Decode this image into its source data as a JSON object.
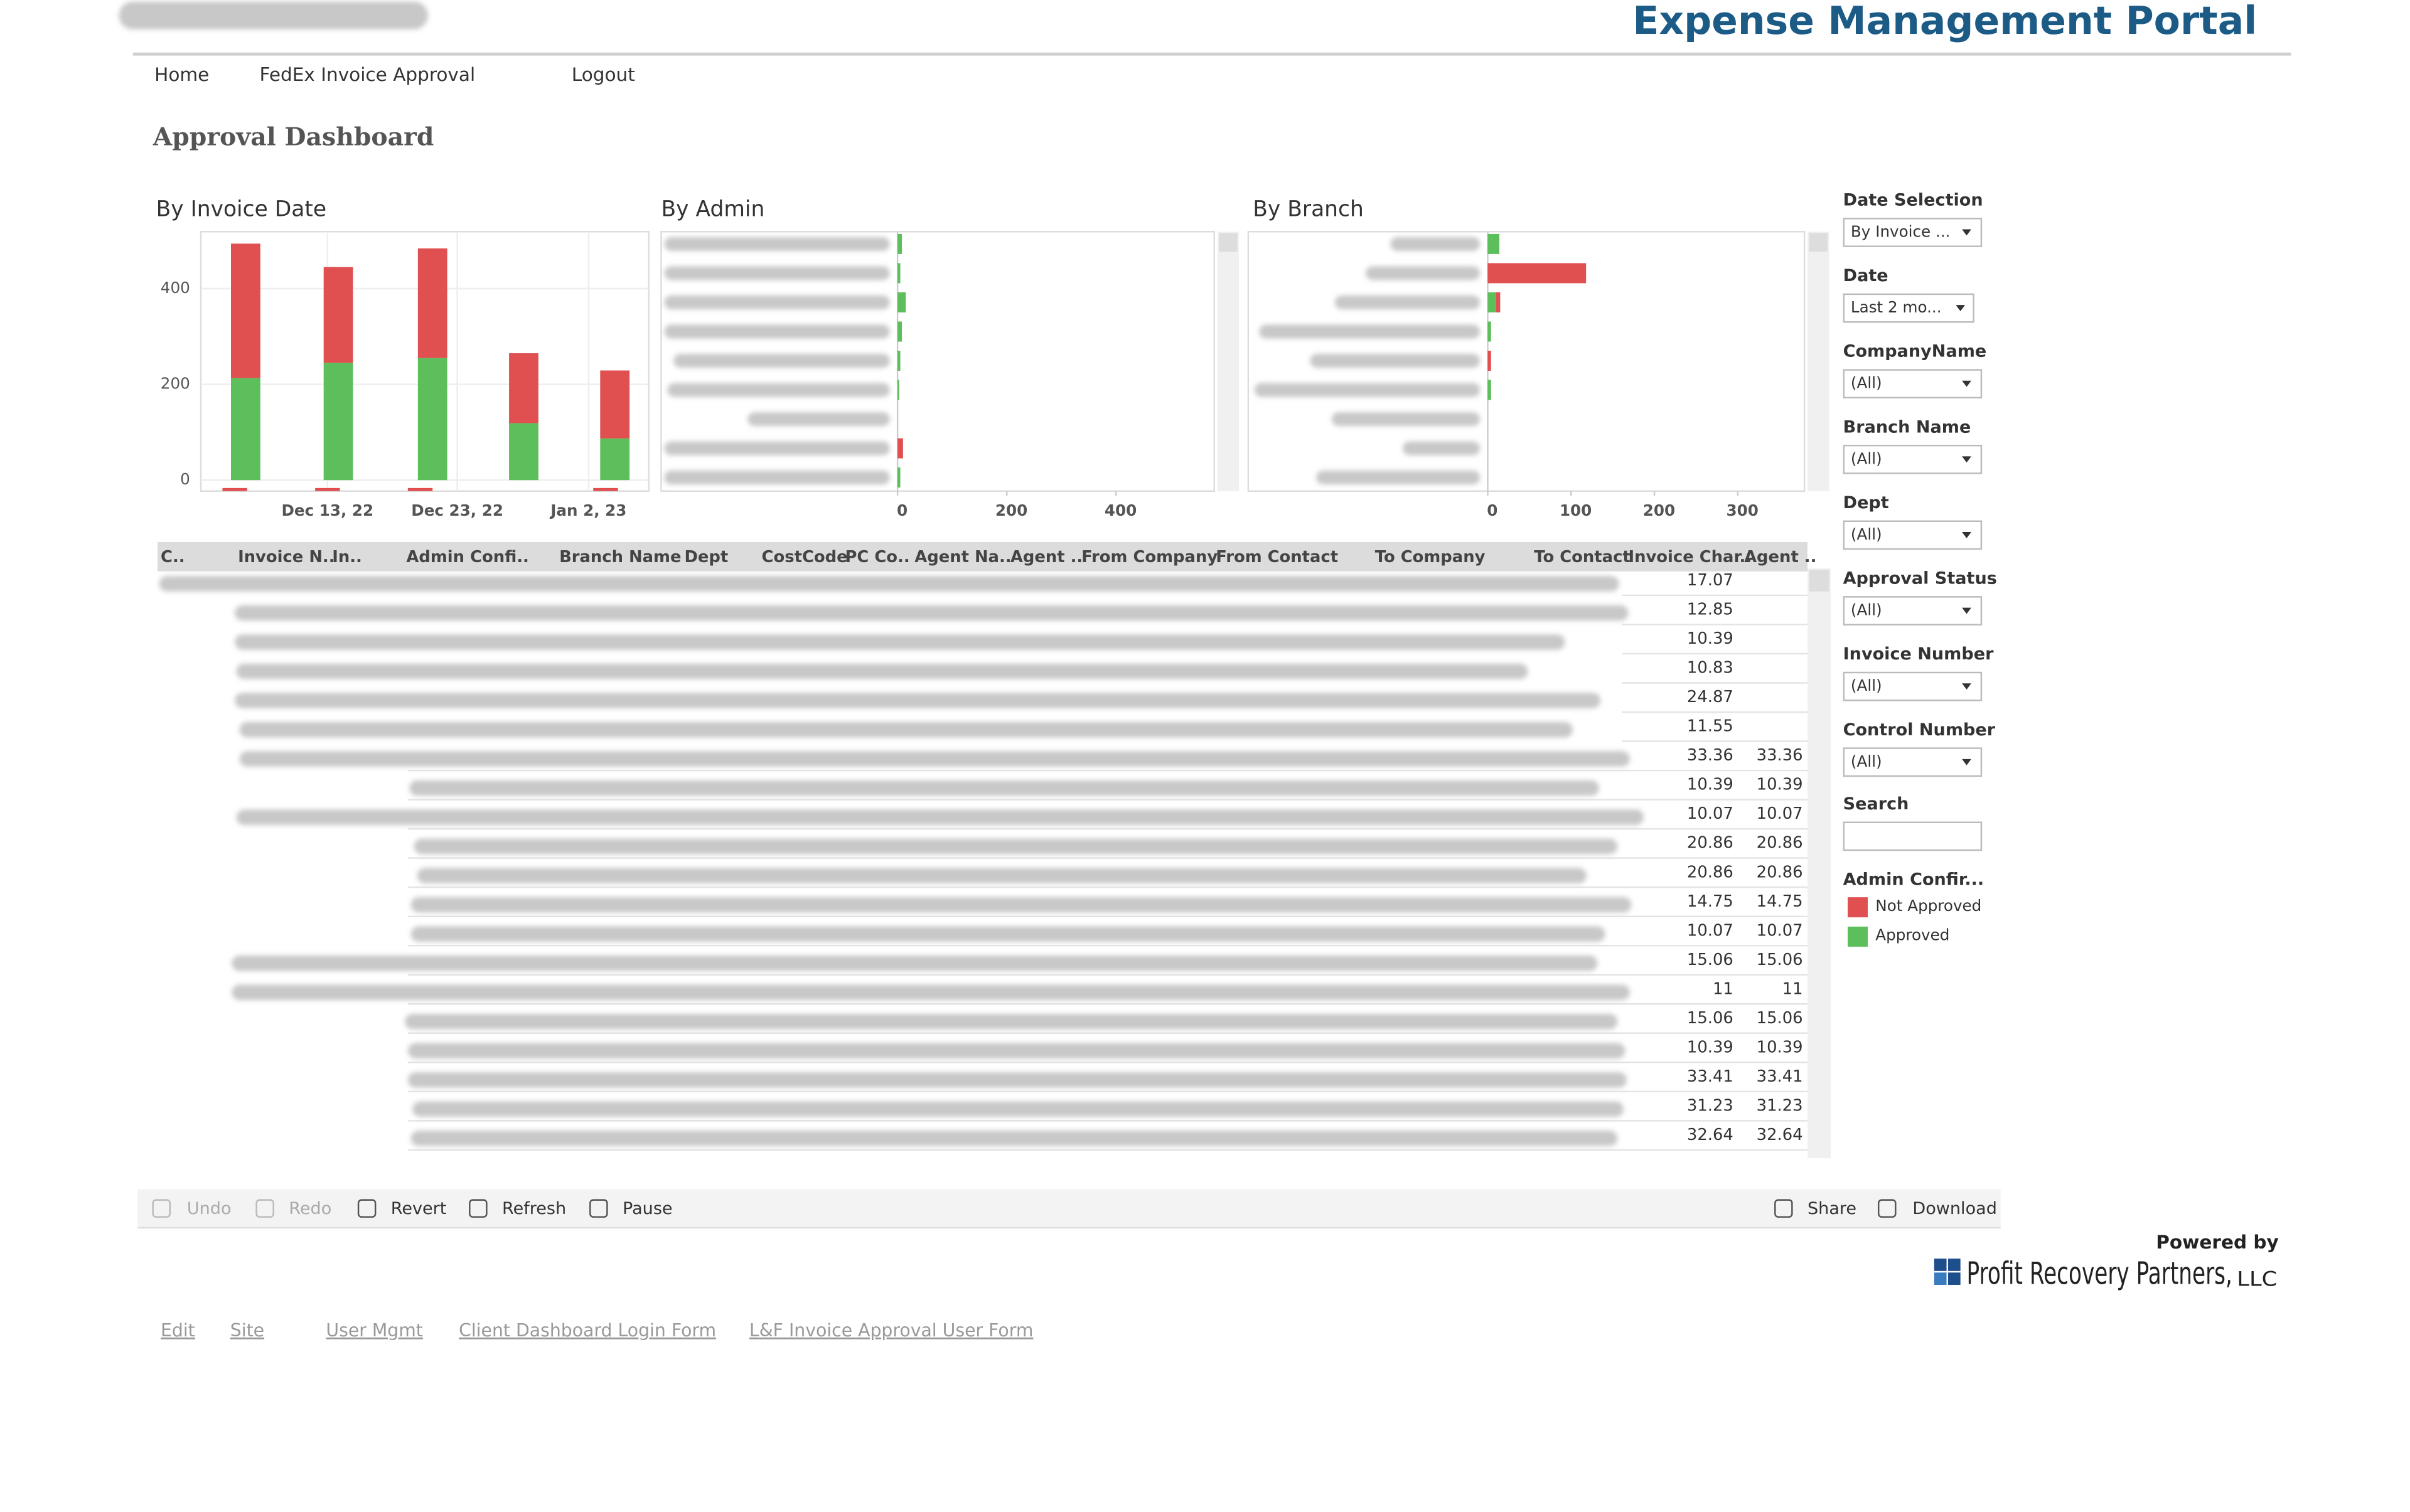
{
  "header": {
    "title": "Expense Management Portal"
  },
  "nav": [
    "Home",
    "FedEx Invoice Approval",
    "Logout"
  ],
  "page_title": "Approval Dashboard",
  "by_invoice_date": {
    "type": "bar",
    "stacked": true,
    "title": "By Invoice Date",
    "series": [
      {
        "name": "Approved",
        "color": "#5cbf5c",
        "values": [
          213,
          245,
          255,
          119,
          87
        ]
      },
      {
        "name": "Not Approved",
        "color": "#e05050",
        "values": [
          281,
          200,
          229,
          146,
          142
        ]
      }
    ],
    "ylim": [
      -23,
      519
    ],
    "yticks": [
      0,
      200,
      400
    ],
    "grid": true,
    "xtick_labels": [
      "Dec 13, 22",
      "Dec 23, 22",
      "Jan 2, 23"
    ]
  },
  "by_admin": {
    "type": "hbar",
    "stacked": true,
    "title": "By Admin",
    "series": [
      {
        "name": "Approved",
        "color": "#5cbf5c",
        "values": [
          8,
          5,
          15,
          8,
          5,
          3,
          0,
          0,
          5
        ]
      },
      {
        "name": "Not Approved",
        "color": "#e05050",
        "values": [
          0,
          0,
          0,
          0,
          0,
          0,
          0,
          10,
          0
        ]
      }
    ],
    "xlim": [
      0,
      580
    ],
    "xticks": [
      0,
      200,
      400
    ]
  },
  "by_branch": {
    "type": "hbar",
    "stacked": true,
    "title": "By Branch",
    "series": [
      {
        "name": "Approved",
        "color": "#5cbf5c",
        "values": [
          14,
          0,
          10,
          4,
          0,
          4,
          0,
          0,
          0
        ]
      },
      {
        "name": "Not Approved",
        "color": "#e05050",
        "values": [
          0,
          118,
          5,
          0,
          4,
          0,
          0,
          0,
          0
        ]
      }
    ],
    "xlim": [
      0,
      380
    ],
    "xticks": [
      0,
      100,
      200,
      300
    ]
  },
  "table": {
    "headers": [
      "C..",
      "Invoice N..",
      "In..",
      "Admin Confi..",
      "Branch Name",
      "Dept",
      "CostCode",
      "PC Co..",
      "Agent Na..",
      "Agent ..",
      "From Company",
      "From Contact",
      "To Company",
      "To Contact",
      "Invoice Char..",
      "Agent .."
    ],
    "rows": [
      [
        "17.07",
        ""
      ],
      [
        "12.85",
        ""
      ],
      [
        "10.39",
        ""
      ],
      [
        "10.83",
        ""
      ],
      [
        "24.87",
        ""
      ],
      [
        "11.55",
        ""
      ],
      [
        "33.36",
        "33.36"
      ],
      [
        "10.39",
        "10.39"
      ],
      [
        "10.07",
        "10.07"
      ],
      [
        "20.86",
        "20.86"
      ],
      [
        "20.86",
        "20.86"
      ],
      [
        "14.75",
        "14.75"
      ],
      [
        "10.07",
        "10.07"
      ],
      [
        "15.06",
        "15.06"
      ],
      [
        "11",
        "11"
      ],
      [
        "15.06",
        "15.06"
      ],
      [
        "10.39",
        "10.39"
      ],
      [
        "33.41",
        "33.41"
      ],
      [
        "31.23",
        "31.23"
      ],
      [
        "32.64",
        "32.64"
      ]
    ]
  },
  "filters": [
    {
      "label": "Date Selection",
      "value": "By Invoice ..."
    },
    {
      "label": "Date",
      "value": "Last 2 mo..."
    },
    {
      "label": "CompanyName",
      "value": "(All)"
    },
    {
      "label": "Branch Name",
      "value": "(All)"
    },
    {
      "label": "Dept",
      "value": "(All)"
    },
    {
      "label": "Approval Status",
      "value": "(All)"
    },
    {
      "label": "Invoice Number",
      "value": "(All)"
    },
    {
      "label": "Control Number",
      "value": "(All)"
    }
  ],
  "search_label": "Search",
  "legend_title": "Admin Confir...",
  "toolbar": [
    "Undo",
    "Redo",
    "Revert",
    "Refresh",
    "Pause",
    "Share",
    "Download"
  ],
  "logo": {
    "powered_by": "Powered by",
    "name": "Profit Recovery Partners,",
    "suffix": "LLC"
  },
  "footer_links": [
    "Edit",
    "Site",
    "User Mgmt",
    "Client Dashboard Login Form",
    "L&F Invoice Approval User Form"
  ]
}
